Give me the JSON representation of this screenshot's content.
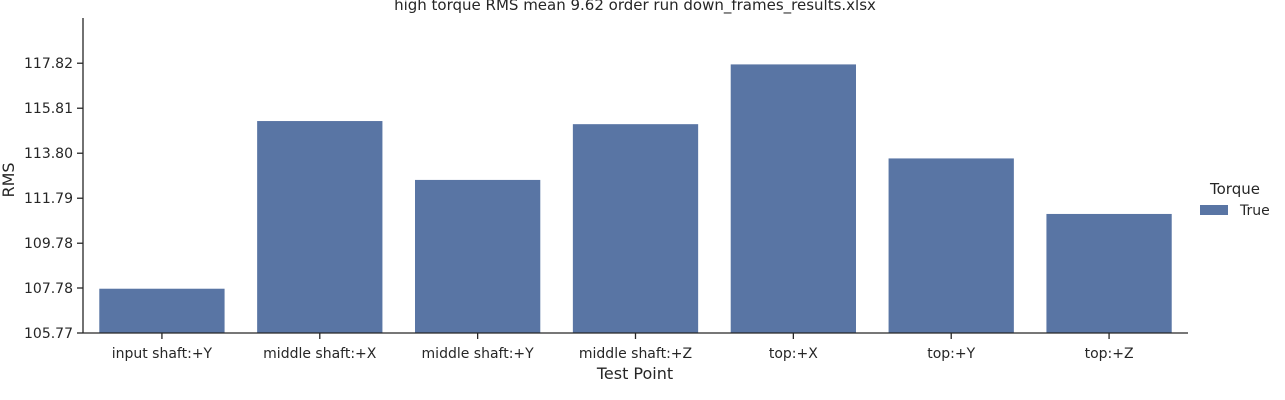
{
  "chart_data": {
    "type": "bar",
    "title": "high torque RMS mean 9.62 order run down_frames_results.xlsx",
    "xlabel": "Test Point",
    "ylabel": "RMS",
    "categories": [
      "input shaft:+Y",
      "middle shaft:+X",
      "middle shaft:+Y",
      "middle shaft:+Z",
      "top:+X",
      "top:+Y",
      "top:+Z"
    ],
    "series": [
      {
        "name": "True",
        "values": [
          107.77,
          115.26,
          112.63,
          115.12,
          117.79,
          113.59,
          111.11
        ]
      }
    ],
    "ylim": [
      105.77,
      119.84
    ],
    "yticks": [
      "105.77",
      "107.78",
      "109.78",
      "111.79",
      "113.80",
      "115.81",
      "117.82"
    ],
    "legend": {
      "title": "Torque",
      "placement": "right"
    },
    "colors": {
      "bar": "#5975a4",
      "axis": "#262626"
    },
    "grid": false
  }
}
